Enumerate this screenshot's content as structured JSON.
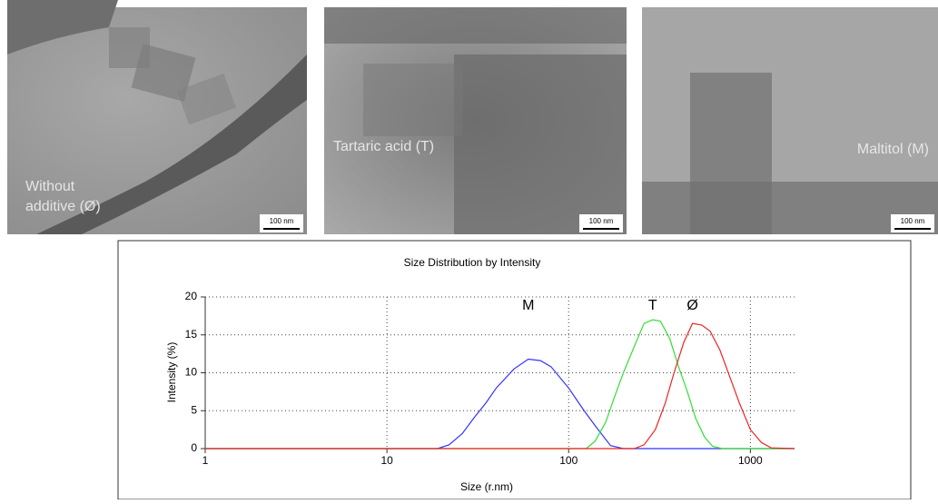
{
  "images": [
    {
      "label": [
        "Without",
        "additive (Ø)"
      ],
      "scale": "100 nm"
    },
    {
      "label": [
        "Tartaric acid (T)"
      ],
      "scale": "100 nm"
    },
    {
      "label": [
        "Maltitol (M)"
      ],
      "scale": "100 nm"
    }
  ],
  "chart_data": {
    "type": "line",
    "title": "Size Distribution by Intensity",
    "x_label": "Size (r.nm)",
    "y_label": "Intensity (%)",
    "log_x": true,
    "grid": true,
    "xlim": [
      1,
      1750
    ],
    "ylim": [
      0,
      20
    ],
    "xticks": [
      1,
      10,
      100,
      1000
    ],
    "yticks": [
      0,
      5,
      10,
      15,
      20
    ],
    "series": [
      {
        "name": "M",
        "color": "#3333ff",
        "x": [
          1,
          19,
          22,
          26,
          30,
          35,
          40,
          50,
          60,
          70,
          80,
          100,
          120,
          140,
          170,
          200,
          250,
          1750
        ],
        "values": [
          0,
          0,
          0.5,
          2,
          4,
          6,
          8,
          10.5,
          11.8,
          11.6,
          10.8,
          8,
          5.2,
          3,
          0.4,
          0,
          0,
          0
        ]
      },
      {
        "name": "T",
        "color": "#33dd33",
        "x": [
          1,
          125,
          140,
          160,
          180,
          200,
          230,
          260,
          290,
          320,
          360,
          400,
          450,
          500,
          560,
          620,
          700,
          1750
        ],
        "values": [
          0,
          0,
          1,
          3.5,
          7,
          10,
          13.5,
          16.5,
          17,
          16.8,
          14.5,
          11,
          7.5,
          4,
          1.5,
          0.3,
          0,
          0
        ]
      },
      {
        "name": "Ø",
        "color": "#ee2222",
        "x": [
          1,
          230,
          260,
          300,
          340,
          380,
          430,
          480,
          540,
          600,
          680,
          770,
          870,
          1000,
          1150,
          1300,
          1750
        ],
        "values": [
          0,
          0,
          0.5,
          2.5,
          6,
          10,
          14,
          16.5,
          16.3,
          15.5,
          13,
          9.5,
          6,
          2.5,
          0.8,
          0.1,
          0
        ]
      }
    ]
  }
}
